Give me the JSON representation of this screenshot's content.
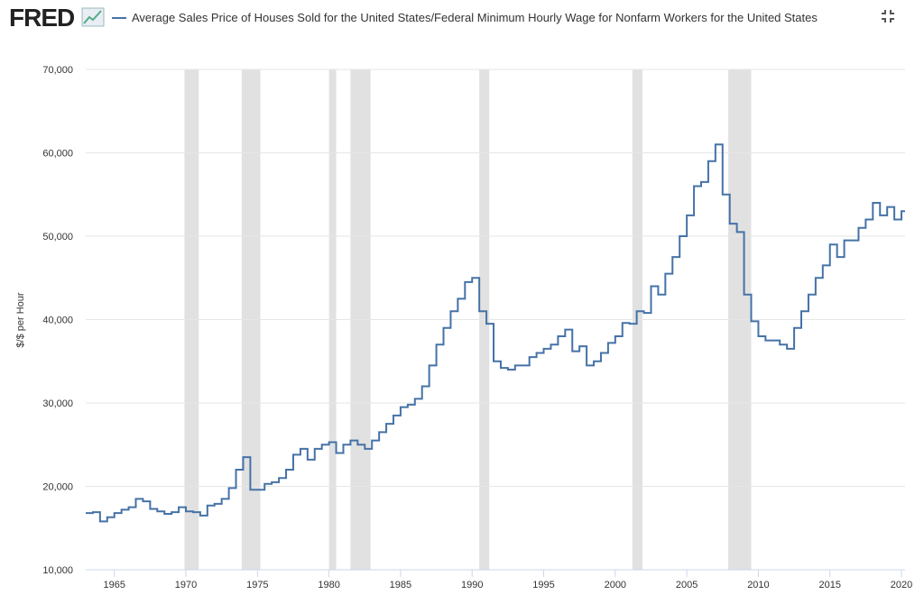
{
  "logo": "FRED",
  "chart_data": {
    "type": "line",
    "y_label": "$/$ per Hour",
    "x": [
      1963,
      1963.5,
      1964,
      1964.5,
      1965,
      1965.5,
      1966,
      1966.5,
      1967,
      1967.5,
      1968,
      1968.5,
      1969,
      1969.5,
      1970,
      1970.5,
      1971,
      1971.5,
      1972,
      1972.5,
      1973,
      1973.5,
      1974,
      1974.5,
      1975,
      1975.5,
      1976,
      1976.5,
      1977,
      1977.5,
      1978,
      1978.5,
      1979,
      1979.5,
      1980,
      1980.5,
      1981,
      1981.5,
      1982,
      1982.5,
      1983,
      1983.5,
      1984,
      1984.5,
      1985,
      1985.5,
      1986,
      1986.5,
      1987,
      1987.5,
      1988,
      1988.5,
      1989,
      1989.5,
      1990,
      1990.5,
      1991,
      1991.5,
      1992,
      1992.5,
      1993,
      1993.5,
      1994,
      1994.5,
      1995,
      1995.5,
      1996,
      1996.5,
      1997,
      1997.5,
      1998,
      1998.5,
      1999,
      1999.5,
      2000,
      2000.5,
      2001,
      2001.5,
      2002,
      2002.5,
      2003,
      2003.5,
      2004,
      2004.5,
      2005,
      2005.5,
      2006,
      2006.5,
      2007,
      2007.5,
      2008,
      2008.5,
      2009,
      2009.5,
      2010,
      2010.5,
      2011,
      2011.5,
      2012,
      2012.5,
      2013,
      2013.5,
      2014,
      2014.5,
      2015,
      2015.5,
      2016,
      2016.5,
      2017,
      2017.5,
      2018,
      2018.5,
      2019,
      2019.5,
      2020
    ],
    "series": [
      {
        "name": "Average Sales Price of Houses Sold for the United States/Federal Minimum Hourly Wage for Nonfarm Workers for the United States",
        "color": "#4572a7",
        "values": [
          16800,
          16900,
          15800,
          16300,
          16800,
          17200,
          17500,
          18500,
          18200,
          17300,
          17000,
          16700,
          16900,
          17500,
          17000,
          16900,
          16500,
          17700,
          17900,
          18500,
          19800,
          22000,
          23500,
          19600,
          19600,
          20300,
          20500,
          21000,
          22000,
          23800,
          24500,
          23200,
          24500,
          25000,
          25300,
          24000,
          25000,
          25500,
          25000,
          24500,
          25500,
          26500,
          27500,
          28500,
          29500,
          29800,
          30500,
          32000,
          34500,
          37000,
          39000,
          41000,
          42500,
          44500,
          45000,
          41000,
          39500,
          35000,
          34200,
          34000,
          34500,
          34500,
          35500,
          36000,
          36500,
          37000,
          38000,
          38800,
          36200,
          36800,
          34500,
          35000,
          36000,
          37200,
          38000,
          39600,
          39500,
          41000,
          40800,
          44000,
          43000,
          45500,
          47500,
          50000,
          52500,
          56000,
          56500,
          59000,
          61000,
          55000,
          51500,
          50500,
          43000,
          39800,
          38000,
          37500,
          37500,
          37000,
          36500,
          39000,
          41000,
          43000,
          45000,
          46500,
          49000,
          47500,
          49500,
          49500,
          51000,
          52000,
          54000,
          52500,
          53500,
          52000,
          53000
        ]
      }
    ],
    "recessions": [
      [
        1969.9,
        1970.9
      ],
      [
        1973.9,
        1975.2
      ],
      [
        1980,
        1980.5
      ],
      [
        1981.5,
        1982.9
      ],
      [
        1990.5,
        1991.2
      ],
      [
        2001.2,
        2001.9
      ],
      [
        2007.9,
        2009.5
      ]
    ],
    "xlim": [
      1963,
      2020.25
    ],
    "xticks": [
      1965,
      1970,
      1975,
      1980,
      1985,
      1990,
      1995,
      2000,
      2005,
      2010,
      2015,
      2020
    ],
    "ylim": [
      10000,
      70000
    ],
    "yticks": [
      {
        "value": 10000,
        "label": "10,000"
      },
      {
        "value": 20000,
        "label": "20,000"
      },
      {
        "value": 30000,
        "label": "30,000"
      },
      {
        "value": 40000,
        "label": "40,000"
      },
      {
        "value": 50000,
        "label": "50,000"
      },
      {
        "value": 60000,
        "label": "60,000"
      },
      {
        "value": 70000,
        "label": "70,000"
      }
    ],
    "grid": true
  }
}
